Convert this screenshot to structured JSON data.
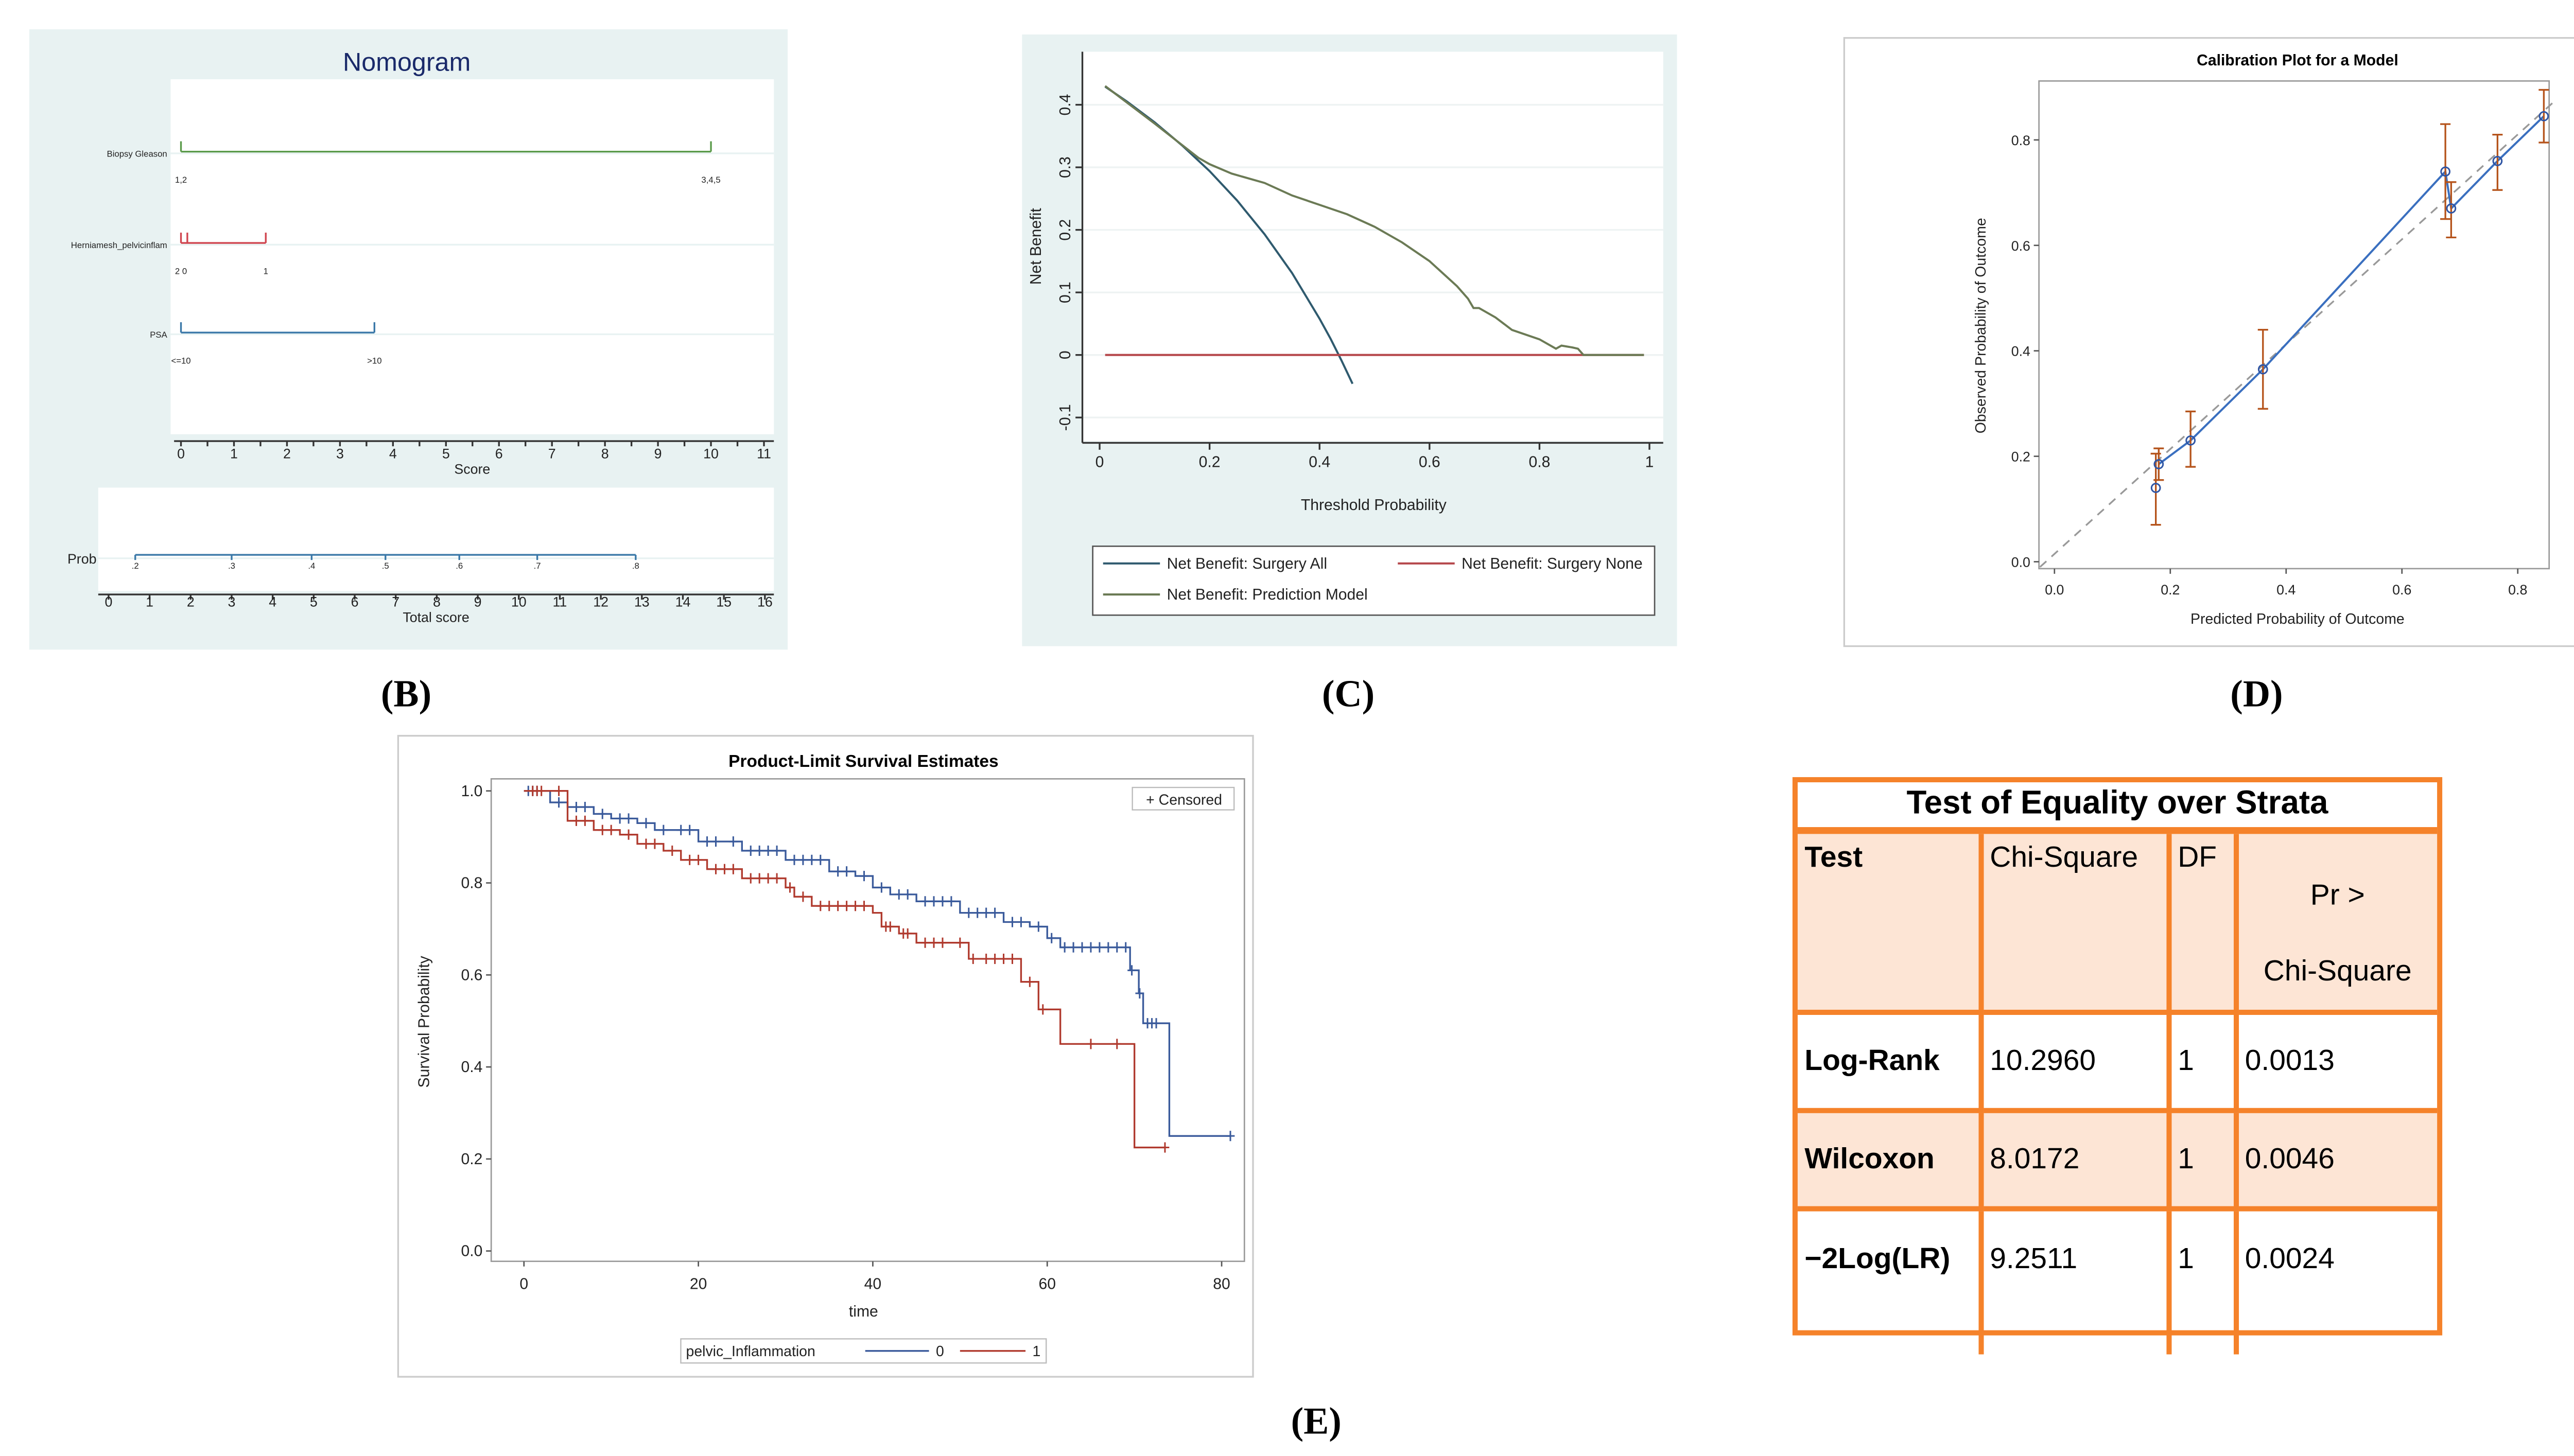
{
  "captions": {
    "b": "(B)",
    "c": "(C)",
    "d": "(D)",
    "e": "(E)"
  },
  "colors": {
    "panel_bg": "#e8f2f2",
    "orange": "#f5822a",
    "peach": "#fde5d5"
  },
  "chart_data": [
    {
      "type": "nomogram",
      "title": "Nomogram",
      "score_axis": {
        "label": "Score",
        "range": [
          0,
          11
        ],
        "ticks": [
          "0",
          "1",
          "2",
          "3",
          "4",
          "5",
          "6",
          "7",
          "8",
          "9",
          "10",
          "11"
        ]
      },
      "rows": [
        {
          "name": "Biopsy Gleason",
          "color": "#5a9a4a",
          "points": [
            {
              "label": "1,2",
              "score": 0
            },
            {
              "label": "3,4,5",
              "score": 10
            }
          ],
          "extra_ticks": []
        },
        {
          "name": "Herniamesh_pelvicinflam",
          "color": "#d0454f",
          "points": [
            {
              "label": "2 0",
              "score": 0
            },
            {
              "label": "1",
              "score": 1.6
            }
          ],
          "extra_ticks": [
            0.12
          ]
        },
        {
          "name": "PSA",
          "color": "#3a78a8",
          "points": [
            {
              "label": "<=10",
              "score": 0
            },
            {
              "label": ">10",
              "score": 3.65
            }
          ],
          "extra_ticks": []
        }
      ],
      "prob_axis": {
        "label": "Prob",
        "color": "#3a78a8",
        "points": [
          {
            "label": ".2",
            "total": 0.65
          },
          {
            "label": ".3",
            "total": 3.0
          },
          {
            "label": ".4",
            "total": 4.95
          },
          {
            "label": ".5",
            "total": 6.75
          },
          {
            "label": ".6",
            "total": 8.55
          },
          {
            "label": ".7",
            "total": 10.45
          },
          {
            "label": ".8",
            "total": 12.85
          }
        ]
      },
      "total_axis": {
        "label": "Total score",
        "range": [
          0,
          16
        ],
        "ticks": [
          "0",
          "1",
          "2",
          "3",
          "4",
          "5",
          "6",
          "7",
          "8",
          "9",
          "10",
          "11",
          "12",
          "13",
          "14",
          "15",
          "16"
        ]
      }
    },
    {
      "type": "line",
      "title": "",
      "xlabel": "Threshold Probability",
      "ylabel": "Net Benefit",
      "xlim": [
        0,
        1
      ],
      "ylim": [
        -0.1,
        0.45
      ],
      "xticks": [
        "0",
        "0.2",
        "0.4",
        "0.6",
        "0.8",
        "1"
      ],
      "yticks": [
        "-0.1",
        "0",
        "0.1",
        "0.2",
        "0.3",
        "0.4"
      ],
      "grid": true,
      "legend_position": "bottom",
      "series": [
        {
          "name": "Net Benefit: Surgery All",
          "color": "#2f5a6e",
          "x": [
            0.01,
            0.05,
            0.1,
            0.15,
            0.2,
            0.25,
            0.3,
            0.35,
            0.4,
            0.42,
            0.44,
            0.46
          ],
          "y": [
            0.429,
            0.405,
            0.372,
            0.335,
            0.294,
            0.247,
            0.193,
            0.131,
            0.058,
            0.026,
            -0.009,
            -0.046
          ]
        },
        {
          "name": "Net Benefit: Surgery None",
          "color": "#b5474b",
          "x": [
            0.01,
            0.99
          ],
          "y": [
            0,
            0
          ]
        },
        {
          "name": "Net Benefit: Prediction Model",
          "color": "#6b7a55",
          "x": [
            0.01,
            0.1,
            0.18,
            0.2,
            0.24,
            0.3,
            0.35,
            0.4,
            0.45,
            0.5,
            0.55,
            0.6,
            0.65,
            0.67,
            0.68,
            0.69,
            0.72,
            0.75,
            0.8,
            0.83,
            0.84,
            0.86,
            0.87,
            0.88,
            0.99
          ],
          "y": [
            0.43,
            0.37,
            0.315,
            0.305,
            0.29,
            0.275,
            0.255,
            0.24,
            0.225,
            0.205,
            0.18,
            0.15,
            0.11,
            0.09,
            0.075,
            0.075,
            0.06,
            0.04,
            0.025,
            0.01,
            0.015,
            0.012,
            0.01,
            0,
            0
          ]
        }
      ]
    },
    {
      "type": "scatter",
      "title": "Calibration Plot for a Model",
      "xlabel": "Predicted Probability of Outcome",
      "ylabel": "Observed Probability of Outcome",
      "xticks": [
        "0.0",
        "0.2",
        "0.4",
        "0.6",
        "0.8"
      ],
      "yticks": [
        "0.0",
        "0.2",
        "0.4",
        "0.6",
        "0.8"
      ],
      "xlim": [
        -0.03,
        0.86
      ],
      "ylim": [
        -0.015,
        0.91
      ],
      "reference_line": "y = x (dashed)",
      "points": [
        {
          "x": 0.175,
          "y": 0.14,
          "lo": 0.07,
          "hi": 0.205
        },
        {
          "x": 0.18,
          "y": 0.185,
          "lo": 0.155,
          "hi": 0.215
        },
        {
          "x": 0.235,
          "y": 0.23,
          "lo": 0.18,
          "hi": 0.285
        },
        {
          "x": 0.36,
          "y": 0.365,
          "lo": 0.29,
          "hi": 0.44
        },
        {
          "x": 0.675,
          "y": 0.74,
          "lo": 0.65,
          "hi": 0.83
        },
        {
          "x": 0.685,
          "y": 0.67,
          "lo": 0.615,
          "hi": 0.72
        },
        {
          "x": 0.765,
          "y": 0.76,
          "lo": 0.705,
          "hi": 0.81
        },
        {
          "x": 0.845,
          "y": 0.845,
          "lo": 0.795,
          "hi": 0.895
        }
      ]
    },
    {
      "type": "line",
      "title": "Product-Limit Survival Estimates",
      "xlabel": "time",
      "ylabel": "Survival Probability",
      "xticks": [
        "0",
        "20",
        "40",
        "60",
        "80"
      ],
      "yticks": [
        "0.0",
        "0.2",
        "0.4",
        "0.6",
        "0.8",
        "1.0"
      ],
      "xlim": [
        -4,
        82
      ],
      "ylim": [
        -0.02,
        1.03
      ],
      "censored_legend": "+ Censored",
      "legend_title": "pelvic_Inflammation",
      "series": [
        {
          "name": "0",
          "color": "#3a5a9b",
          "t": [
            0,
            3,
            5,
            8,
            10,
            13,
            15,
            20,
            25,
            30,
            35,
            38,
            40,
            42,
            45,
            50,
            55,
            58,
            60,
            61.5,
            69.5,
            70.5,
            71,
            74,
            81
          ],
          "s": [
            1,
            0.975,
            0.965,
            0.95,
            0.94,
            0.93,
            0.915,
            0.89,
            0.87,
            0.85,
            0.825,
            0.815,
            0.79,
            0.775,
            0.76,
            0.735,
            0.715,
            0.705,
            0.68,
            0.66,
            0.61,
            0.56,
            0.495,
            0.25,
            0.25
          ],
          "censored": [
            0.5,
            1,
            1.5,
            4,
            6,
            7,
            9,
            11,
            12,
            14,
            16,
            18,
            19,
            21,
            22,
            24,
            26,
            27,
            28,
            29,
            31,
            32,
            33,
            34,
            36,
            37,
            39,
            41,
            43,
            44,
            46,
            47,
            48,
            49,
            51,
            52,
            53,
            54,
            56,
            57,
            59,
            60.5,
            62,
            63,
            64,
            65,
            66,
            67,
            68,
            69,
            69.7,
            70.6,
            71.5,
            72,
            72.5,
            81
          ]
        },
        {
          "name": "1",
          "color": "#b03a2e",
          "t": [
            0,
            3,
            5,
            8,
            11,
            13,
            16,
            18,
            21,
            25,
            30,
            31,
            33,
            40,
            41,
            43,
            45,
            51,
            57,
            59,
            61.5,
            70,
            73.5
          ],
          "s": [
            1,
            1,
            0.935,
            0.915,
            0.905,
            0.885,
            0.87,
            0.85,
            0.83,
            0.81,
            0.79,
            0.77,
            0.75,
            0.735,
            0.705,
            0.69,
            0.67,
            0.635,
            0.585,
            0.525,
            0.45,
            0.225,
            0.225
          ],
          "censored": [
            1,
            1.5,
            2,
            4,
            6,
            7,
            9,
            10,
            12,
            14,
            15,
            17,
            19,
            20,
            22,
            23,
            24,
            26,
            27,
            28,
            29,
            30.5,
            32,
            34,
            35,
            36,
            37,
            38,
            39,
            41.5,
            42,
            43.5,
            44,
            46,
            47,
            48,
            50,
            51.5,
            53,
            54,
            55,
            56,
            58,
            59.5,
            65,
            68,
            73.5
          ]
        }
      ]
    }
  ],
  "table": {
    "title": "Test of Equality over Strata",
    "headers": [
      "Test",
      "Chi-Square",
      "DF",
      "Pr >",
      "Chi-Square"
    ],
    "rows": [
      {
        "test": "Log-Rank",
        "chi": "10.2960",
        "df": "1",
        "p": "0.0013"
      },
      {
        "test": "Wilcoxon",
        "chi": "8.0172",
        "df": "1",
        "p": "0.0046"
      },
      {
        "test": "−2Log(LR)",
        "chi": "9.2511",
        "df": "1",
        "p": "0.0024"
      }
    ]
  }
}
